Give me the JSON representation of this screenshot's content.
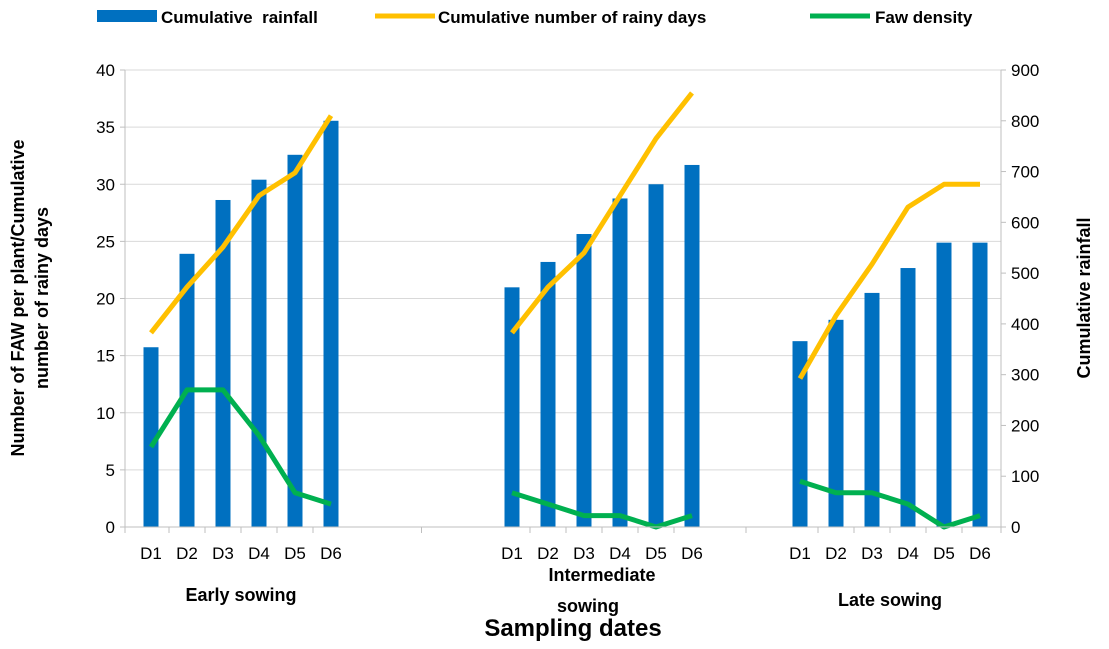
{
  "chart_data": {
    "type": "bar",
    "categories": [
      "D1",
      "D2",
      "D3",
      "D4",
      "D5",
      "D6",
      "D1",
      "D2",
      "D3",
      "D4",
      "D5",
      "D6",
      "D1",
      "D2",
      "D3",
      "D4",
      "D5",
      "D6"
    ],
    "groups": [
      {
        "label": "Early sowing",
        "categories": [
          "D1",
          "D2",
          "D3",
          "D4",
          "D5",
          "D6"
        ]
      },
      {
        "label": "Intermediate sowing",
        "label_lines": [
          "Intermediate",
          "sowing"
        ],
        "categories": [
          "D1",
          "D2",
          "D3",
          "D4",
          "D5",
          "D6"
        ]
      },
      {
        "label": "Late sowing",
        "categories": [
          "D1",
          "D2",
          "D3",
          "D4",
          "D5",
          "D6"
        ]
      }
    ],
    "series": [
      {
        "name": "Cumulative  rainfall",
        "type": "bar",
        "axis": "right",
        "color": "#0070C0",
        "values": [
          354,
          538,
          644,
          684,
          733,
          800,
          472,
          522,
          577,
          647,
          675,
          713,
          366,
          408,
          461,
          510,
          560,
          560
        ]
      },
      {
        "name": "Cumulative number of rainy days",
        "type": "line",
        "axis": "left",
        "color": "#FFC000",
        "values": [
          17,
          21,
          24.5,
          29,
          31,
          36,
          17,
          21,
          24,
          29,
          34,
          38,
          13,
          18.5,
          23,
          28,
          30,
          30
        ]
      },
      {
        "name": "Faw density",
        "type": "line",
        "axis": "left",
        "color": "#00B050",
        "values": [
          7,
          12,
          12,
          8,
          3,
          2,
          3,
          2,
          1,
          1,
          0,
          1,
          4,
          3,
          3,
          2,
          0,
          1
        ]
      }
    ],
    "y_left": {
      "label_lines": [
        "Number of FAW per plant/Cumulative",
        "number of rainy days"
      ],
      "ylim": [
        0,
        40
      ],
      "ticks": [
        "0",
        "5",
        "10",
        "15",
        "20",
        "25",
        "30",
        "35",
        "40"
      ]
    },
    "y_right": {
      "label": "Cumulative rainfall",
      "ylim": [
        0,
        900
      ],
      "ticks": [
        "0",
        "100",
        "200",
        "300",
        "400",
        "500",
        "600",
        "700",
        "800",
        "900"
      ]
    },
    "xlabel": "Sampling dates",
    "grid": true,
    "legend_position": "top"
  }
}
